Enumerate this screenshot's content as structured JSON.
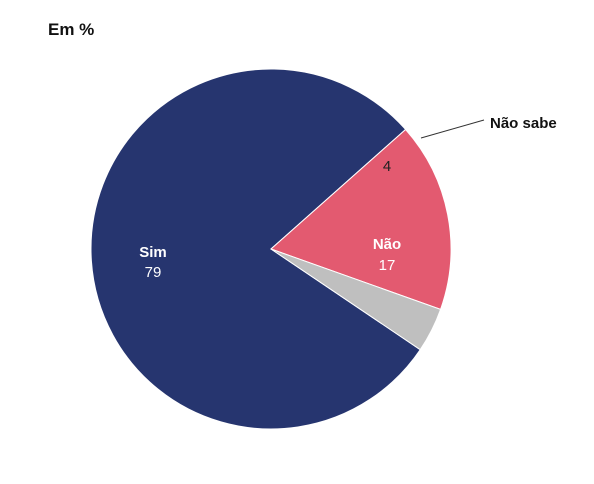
{
  "unit_label": "Em %",
  "colors": {
    "sim": "#26356f",
    "nao": "#e35a70",
    "nao_sabe": "#bfbfbf",
    "inner_text_light": "#ffffff",
    "inner_text_dark": "#222222",
    "leader_line": "#333333"
  },
  "chart_data": {
    "type": "pie",
    "title": "",
    "unit": "Em %",
    "slices": [
      {
        "label": "Sim",
        "value": 79
      },
      {
        "label": "Não",
        "value": 17
      },
      {
        "label": "Não sabe",
        "value": 4
      }
    ]
  },
  "labels": {
    "sim_name": "Sim",
    "sim_value": "79",
    "nao_name": "Não",
    "nao_value": "17",
    "nao_sabe_name": "Não sabe",
    "nao_sabe_value": "4"
  }
}
